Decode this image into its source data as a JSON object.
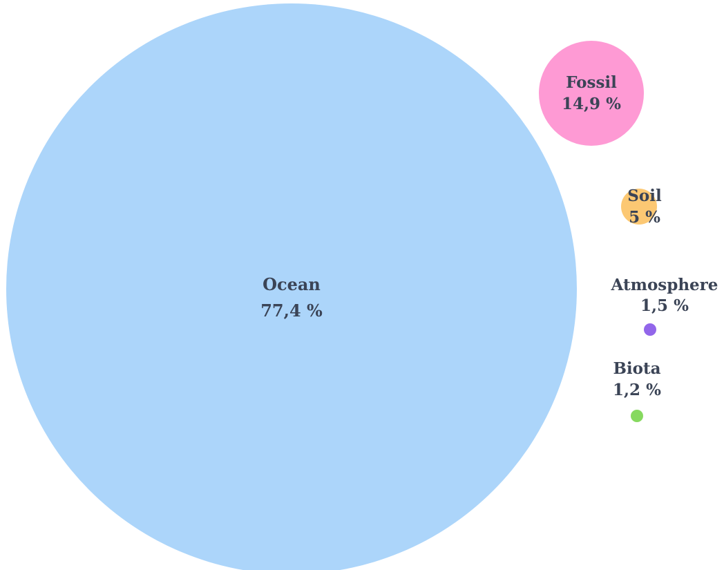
{
  "chart_data": {
    "type": "bubble",
    "unit": "%",
    "series": [
      {
        "name": "Ocean",
        "value": 77.4,
        "value_label": "77,4 %",
        "color": "#acd5fa"
      },
      {
        "name": "Fossil",
        "value": 14.9,
        "value_label": "14,9 %",
        "color": "#fe9ad4"
      },
      {
        "name": "Soil",
        "value": 5,
        "value_label": "5 %",
        "color": "#fcc873"
      },
      {
        "name": "Atmosphere",
        "value": 1.5,
        "value_label": "1,5 %",
        "color": "#9266ea"
      },
      {
        "name": "Biota",
        "value": 1.2,
        "value_label": "1,2 %",
        "color": "#86d95f"
      }
    ]
  }
}
